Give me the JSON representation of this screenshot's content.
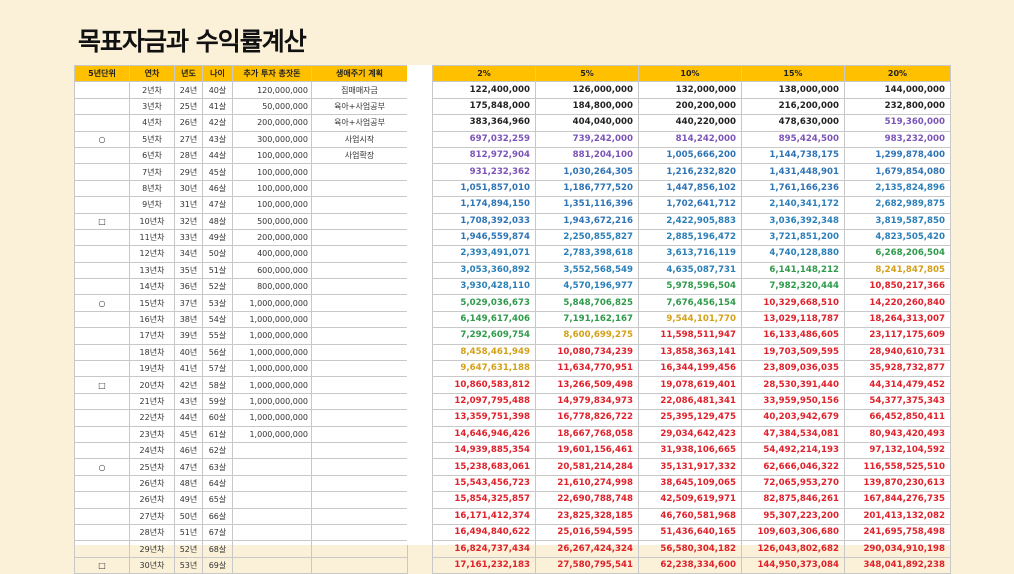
{
  "title": "목표자금과 수익률계산",
  "colors": {
    "header_bg": "#ffc000",
    "c_purple": "#7b54b8",
    "c_blue": "#2e74b5",
    "c_green": "#2e9a4a",
    "c_gold": "#d4a017",
    "c_red": "#e0202a"
  },
  "left_headers": [
    "5년단위",
    "연차",
    "년도",
    "나이",
    "추가 투자 총잣돈",
    "생애주기 계획"
  ],
  "rate_headers": [
    "2%",
    "5%",
    "10%",
    "15%",
    "20%"
  ],
  "rows": [
    {
      "mark": "",
      "year_no": "2년차",
      "yr": "24년",
      "age": "40살",
      "invest": "120,000,000",
      "plan": "집매매자금",
      "values": [
        "122,400,000",
        "126,000,000",
        "132,000,000",
        "138,000,000",
        "144,000,000"
      ],
      "colors": [
        "k",
        "k",
        "k",
        "k",
        "k"
      ]
    },
    {
      "mark": "",
      "year_no": "3년차",
      "yr": "25년",
      "age": "41살",
      "invest": "50,000,000",
      "plan": "육아+사업공부",
      "values": [
        "175,848,000",
        "184,800,000",
        "200,200,000",
        "216,200,000",
        "232,800,000"
      ],
      "colors": [
        "k",
        "k",
        "k",
        "k",
        "k"
      ]
    },
    {
      "mark": "",
      "year_no": "4년차",
      "yr": "26년",
      "age": "42살",
      "invest": "200,000,000",
      "plan": "육아+사업공부",
      "values": [
        "383,364,960",
        "404,040,000",
        "440,220,000",
        "478,630,000",
        "519,360,000"
      ],
      "colors": [
        "k",
        "k",
        "k",
        "k",
        "p"
      ]
    },
    {
      "mark": "○",
      "year_no": "5년차",
      "yr": "27년",
      "age": "43살",
      "invest": "300,000,000",
      "plan": "사업시작",
      "values": [
        "697,032,259",
        "739,242,000",
        "814,242,000",
        "895,424,500",
        "983,232,000"
      ],
      "colors": [
        "p",
        "p",
        "p",
        "p",
        "p"
      ]
    },
    {
      "mark": "",
      "year_no": "6년차",
      "yr": "28년",
      "age": "44살",
      "invest": "100,000,000",
      "plan": "사업확장",
      "values": [
        "812,972,904",
        "881,204,100",
        "1,005,666,200",
        "1,144,738,175",
        "1,299,878,400"
      ],
      "colors": [
        "p",
        "p",
        "b",
        "b",
        "b"
      ]
    },
    {
      "mark": "",
      "year_no": "7년차",
      "yr": "29년",
      "age": "45살",
      "invest": "100,000,000",
      "plan": "",
      "values": [
        "931,232,362",
        "1,030,264,305",
        "1,216,232,820",
        "1,431,448,901",
        "1,679,854,080"
      ],
      "colors": [
        "p",
        "b",
        "b",
        "b",
        "b"
      ]
    },
    {
      "mark": "",
      "year_no": "8년차",
      "yr": "30년",
      "age": "46살",
      "invest": "100,000,000",
      "plan": "",
      "values": [
        "1,051,857,010",
        "1,186,777,520",
        "1,447,856,102",
        "1,761,166,236",
        "2,135,824,896"
      ],
      "colors": [
        "b",
        "b",
        "b",
        "b",
        "g"
      ]
    },
    {
      "mark": "",
      "year_no": "9년차",
      "yr": "31년",
      "age": "47살",
      "invest": "100,000,000",
      "plan": "",
      "values": [
        "1,174,894,150",
        "1,351,116,396",
        "1,702,641,712",
        "2,140,341,172",
        "2,682,989,875"
      ],
      "colors": [
        "b",
        "b",
        "b",
        "g",
        "g"
      ]
    },
    {
      "mark": "□",
      "year_no": "10년차",
      "yr": "32년",
      "age": "48살",
      "invest": "500,000,000",
      "plan": "",
      "values": [
        "1,708,392,033",
        "1,943,672,216",
        "2,422,905,883",
        "3,036,392,348",
        "3,819,587,850"
      ],
      "colors": [
        "b",
        "b",
        "g",
        "g",
        "g"
      ]
    },
    {
      "mark": "",
      "year_no": "11년차",
      "yr": "33년",
      "age": "49살",
      "invest": "200,000,000",
      "plan": "",
      "values": [
        "1,946,559,874",
        "2,250,855,827",
        "2,885,196,472",
        "3,721,851,200",
        "4,823,505,420"
      ],
      "colors": [
        "b",
        "g",
        "g",
        "g",
        "g"
      ]
    },
    {
      "mark": "",
      "year_no": "12년차",
      "yr": "34년",
      "age": "50살",
      "invest": "400,000,000",
      "plan": "",
      "values": [
        "2,393,491,071",
        "2,783,398,618",
        "3,613,716,119",
        "4,740,128,880",
        "6,268,206,504"
      ],
      "colors": [
        "g",
        "g",
        "g",
        "g",
        "gr"
      ]
    },
    {
      "mark": "",
      "year_no": "13년차",
      "yr": "35년",
      "age": "51살",
      "invest": "600,000,000",
      "plan": "",
      "values": [
        "3,053,360,892",
        "3,552,568,549",
        "4,635,087,731",
        "6,141,148,212",
        "8,241,847,805"
      ],
      "colors": [
        "g",
        "g",
        "g",
        "gr",
        "y"
      ]
    },
    {
      "mark": "",
      "year_no": "14년차",
      "yr": "36년",
      "age": "52살",
      "invest": "800,000,000",
      "plan": "",
      "values": [
        "3,930,428,110",
        "4,570,196,977",
        "5,978,596,504",
        "7,982,320,444",
        "10,850,217,366"
      ],
      "colors": [
        "g",
        "g",
        "gr",
        "gr",
        "r"
      ]
    },
    {
      "mark": "○",
      "year_no": "15년차",
      "yr": "37년",
      "age": "53살",
      "invest": "1,000,000,000",
      "plan": "",
      "values": [
        "5,029,036,673",
        "5,848,706,825",
        "7,676,456,154",
        "10,329,668,510",
        "14,220,260,840"
      ],
      "colors": [
        "gr",
        "gr",
        "gr",
        "r",
        "r"
      ]
    },
    {
      "mark": "",
      "year_no": "16년차",
      "yr": "38년",
      "age": "54살",
      "invest": "1,000,000,000",
      "plan": "",
      "values": [
        "6,149,617,406",
        "7,191,162,167",
        "9,544,101,770",
        "13,029,118,787",
        "18,264,313,007"
      ],
      "colors": [
        "gr",
        "gr",
        "y",
        "r",
        "r"
      ]
    },
    {
      "mark": "",
      "year_no": "17년차",
      "yr": "39년",
      "age": "55살",
      "invest": "1,000,000,000",
      "plan": "",
      "values": [
        "7,292,609,754",
        "8,600,699,275",
        "11,598,511,947",
        "16,133,486,605",
        "23,117,175,609"
      ],
      "colors": [
        "gr",
        "y",
        "r",
        "r",
        "r"
      ]
    },
    {
      "mark": "",
      "year_no": "18년차",
      "yr": "40년",
      "age": "56살",
      "invest": "1,000,000,000",
      "plan": "",
      "values": [
        "8,458,461,949",
        "10,080,734,239",
        "13,858,363,141",
        "19,703,509,595",
        "28,940,610,731"
      ],
      "colors": [
        "y",
        "r",
        "r",
        "r",
        "r"
      ]
    },
    {
      "mark": "",
      "year_no": "19년차",
      "yr": "41년",
      "age": "57살",
      "invest": "1,000,000,000",
      "plan": "",
      "values": [
        "9,647,631,188",
        "11,634,770,951",
        "16,344,199,456",
        "23,809,036,035",
        "35,928,732,877"
      ],
      "colors": [
        "y",
        "r",
        "r",
        "r",
        "r"
      ]
    },
    {
      "mark": "□",
      "year_no": "20년차",
      "yr": "42년",
      "age": "58살",
      "invest": "1,000,000,000",
      "plan": "",
      "values": [
        "10,860,583,812",
        "13,266,509,498",
        "19,078,619,401",
        "28,530,391,440",
        "44,314,479,452"
      ],
      "colors": [
        "r",
        "r",
        "r",
        "r",
        "r"
      ]
    },
    {
      "mark": "",
      "year_no": "21년차",
      "yr": "43년",
      "age": "59살",
      "invest": "1,000,000,000",
      "plan": "",
      "values": [
        "12,097,795,488",
        "14,979,834,973",
        "22,086,481,341",
        "33,959,950,156",
        "54,377,375,343"
      ],
      "colors": [
        "r",
        "r",
        "r",
        "r",
        "r"
      ]
    },
    {
      "mark": "",
      "year_no": "22년차",
      "yr": "44년",
      "age": "60살",
      "invest": "1,000,000,000",
      "plan": "",
      "values": [
        "13,359,751,398",
        "16,778,826,722",
        "25,395,129,475",
        "40,203,942,679",
        "66,452,850,411"
      ],
      "colors": [
        "r",
        "r",
        "r",
        "r",
        "r"
      ]
    },
    {
      "mark": "",
      "year_no": "23년차",
      "yr": "45년",
      "age": "61살",
      "invest": "1,000,000,000",
      "plan": "",
      "values": [
        "14,646,946,426",
        "18,667,768,058",
        "29,034,642,423",
        "47,384,534,081",
        "80,943,420,493"
      ],
      "colors": [
        "r",
        "r",
        "r",
        "r",
        "r"
      ]
    },
    {
      "mark": "",
      "year_no": "24년차",
      "yr": "46년",
      "age": "62살",
      "invest": "",
      "plan": "",
      "values": [
        "14,939,885,354",
        "19,601,156,461",
        "31,938,106,665",
        "54,492,214,193",
        "97,132,104,592"
      ],
      "colors": [
        "r",
        "r",
        "r",
        "r",
        "r"
      ]
    },
    {
      "mark": "○",
      "year_no": "25년차",
      "yr": "47년",
      "age": "63살",
      "invest": "",
      "plan": "",
      "values": [
        "15,238,683,061",
        "20,581,214,284",
        "35,131,917,332",
        "62,666,046,322",
        "116,558,525,510"
      ],
      "colors": [
        "r",
        "r",
        "r",
        "r",
        "r"
      ]
    },
    {
      "mark": "",
      "year_no": "26년차",
      "yr": "48년",
      "age": "64살",
      "invest": "",
      "plan": "",
      "values": [
        "15,543,456,723",
        "21,610,274,998",
        "38,645,109,065",
        "72,065,953,270",
        "139,870,230,613"
      ],
      "colors": [
        "r",
        "r",
        "r",
        "r",
        "r"
      ]
    },
    {
      "mark": "",
      "year_no": "26년차",
      "yr": "49년",
      "age": "65살",
      "invest": "",
      "plan": "",
      "values": [
        "15,854,325,857",
        "22,690,788,748",
        "42,509,619,971",
        "82,875,846,261",
        "167,844,276,735"
      ],
      "colors": [
        "r",
        "r",
        "r",
        "r",
        "r"
      ]
    },
    {
      "mark": "",
      "year_no": "27년차",
      "yr": "50년",
      "age": "66살",
      "invest": "",
      "plan": "",
      "values": [
        "16,171,412,374",
        "23,825,328,185",
        "46,760,581,968",
        "95,307,223,200",
        "201,413,132,082"
      ],
      "colors": [
        "r",
        "r",
        "r",
        "r",
        "r"
      ]
    },
    {
      "mark": "",
      "year_no": "28년차",
      "yr": "51년",
      "age": "67살",
      "invest": "",
      "plan": "",
      "values": [
        "16,494,840,622",
        "25,016,594,595",
        "51,436,640,165",
        "109,603,306,680",
        "241,695,758,498"
      ],
      "colors": [
        "r",
        "r",
        "r",
        "r",
        "r"
      ]
    },
    {
      "mark": "",
      "year_no": "29년차",
      "yr": "52년",
      "age": "68살",
      "invest": "",
      "plan": "",
      "values": [
        "16,824,737,434",
        "26,267,424,324",
        "56,580,304,182",
        "126,043,802,682",
        "290,034,910,198"
      ],
      "colors": [
        "r",
        "r",
        "r",
        "r",
        "r"
      ]
    },
    {
      "mark": "□",
      "year_no": "30년차",
      "yr": "53년",
      "age": "69살",
      "invest": "",
      "plan": "",
      "values": [
        "17,161,232,183",
        "27,580,795,541",
        "62,238,334,600",
        "144,950,373,084",
        "348,041,892,238"
      ],
      "colors": [
        "r",
        "r",
        "r",
        "r",
        "r"
      ]
    }
  ]
}
